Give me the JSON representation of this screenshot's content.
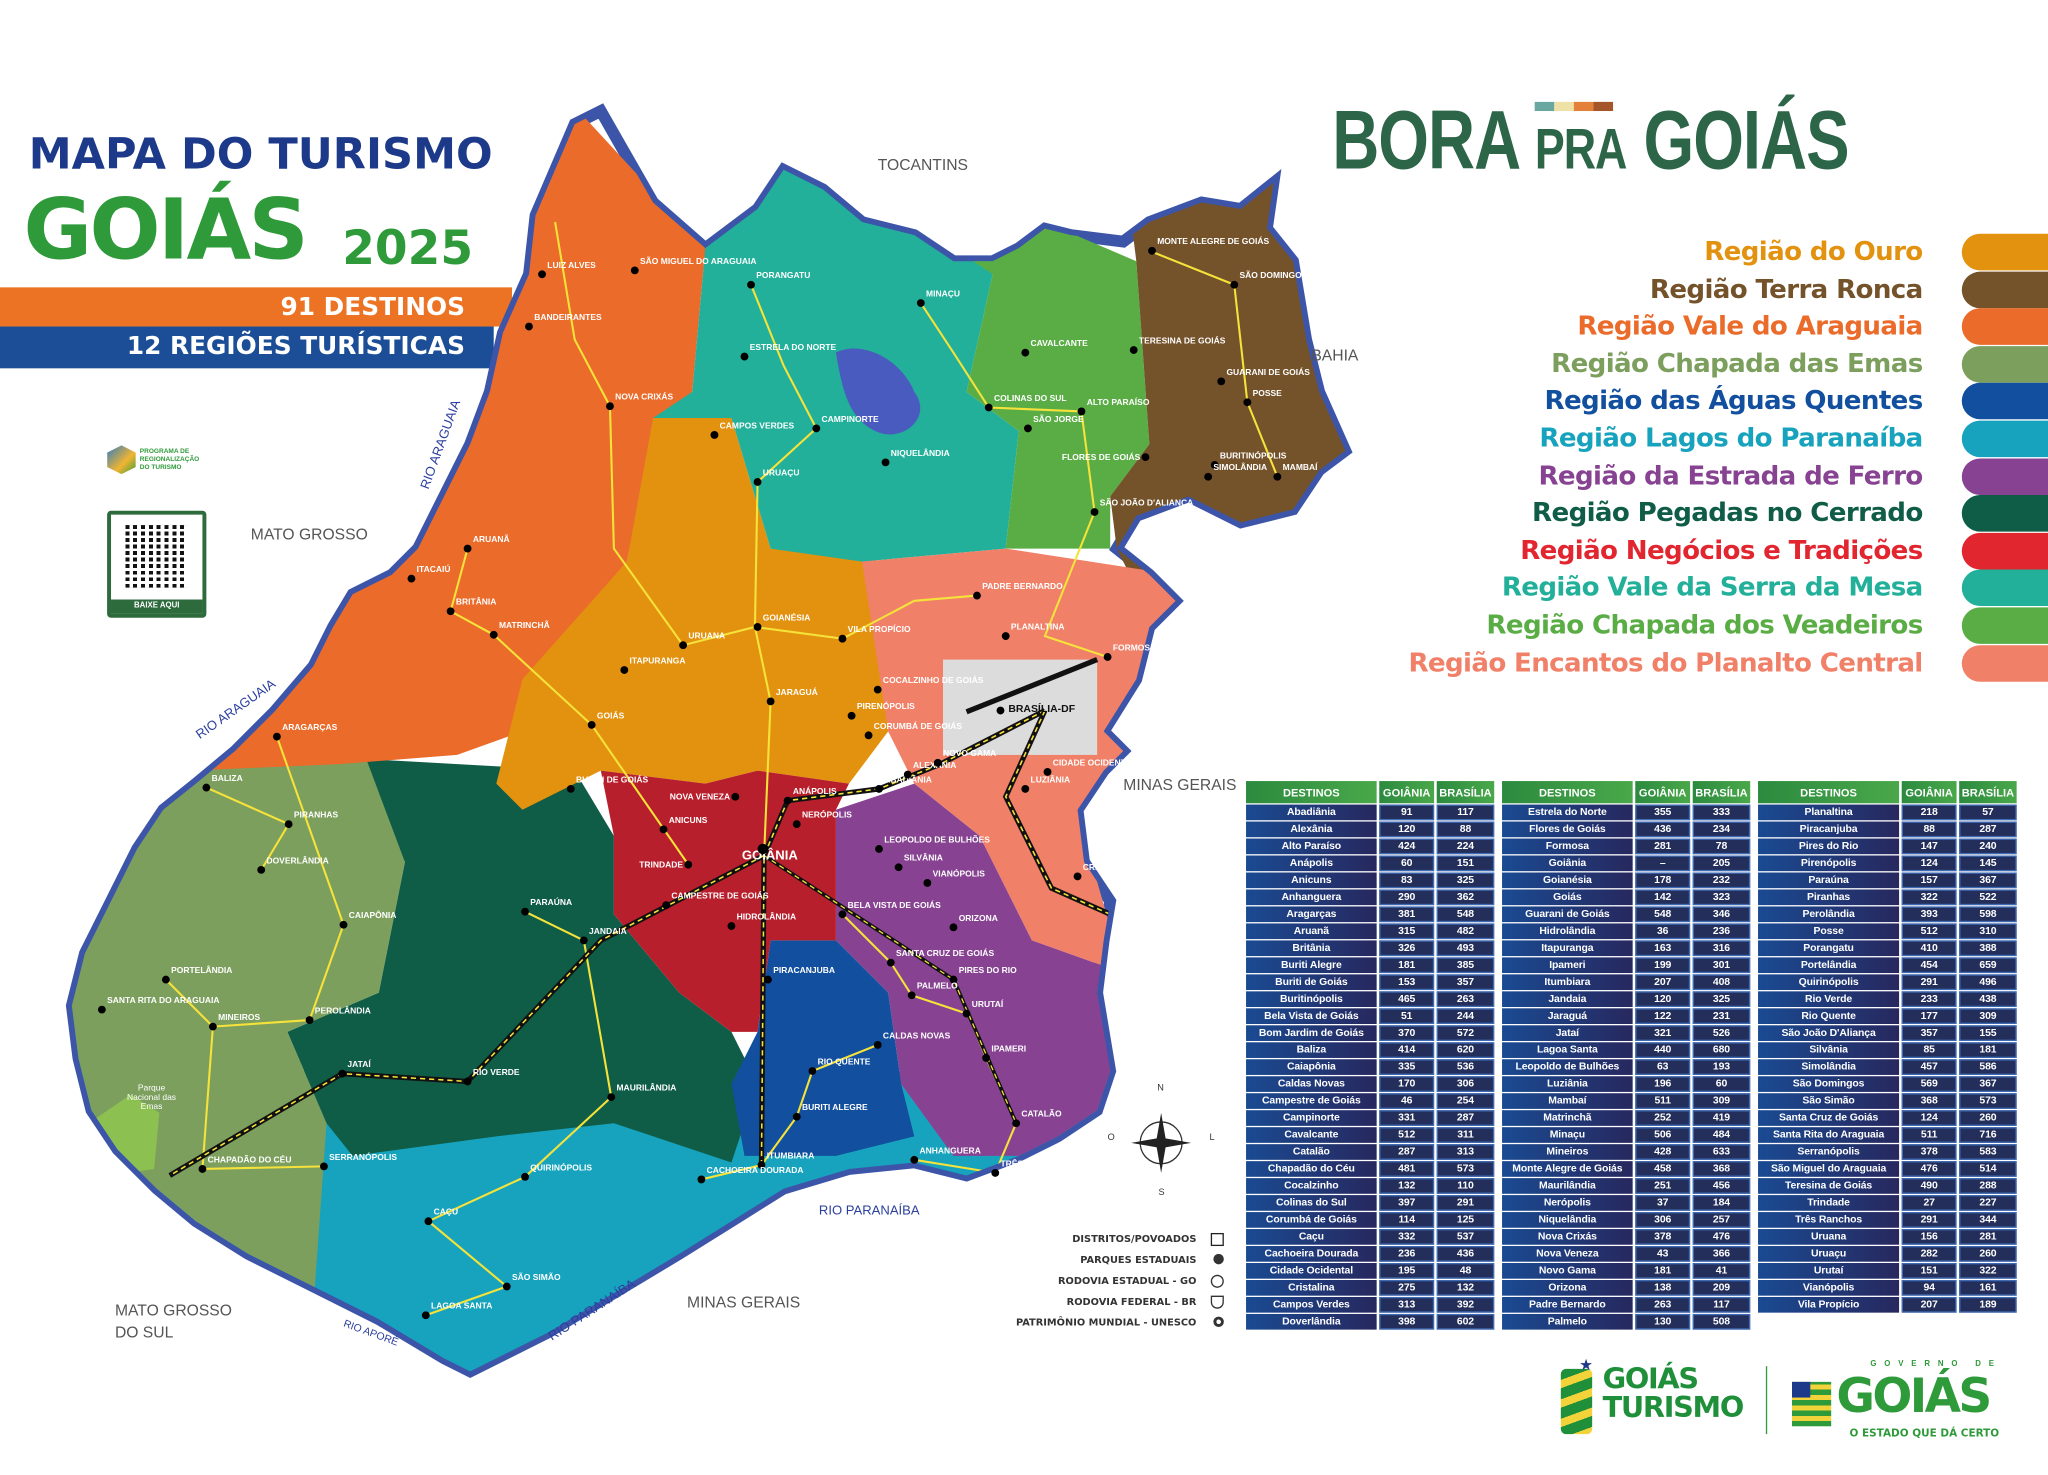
{
  "header": {
    "title_line1": "MAPA DO TURISMO",
    "title_line2": "GOIÁS",
    "year": "2025",
    "destinations_count": "91 DESTINOS",
    "regions_count": "12 REGIÕES TURÍSTICAS",
    "program_logo_text": "PROGRAMA DE REGIONALIZAÇÃO DO TURISMO",
    "qr_label": "BAIXE AQUI"
  },
  "brand": {
    "logo_text_1": "BORA",
    "logo_text_2": "PRA",
    "logo_text_3": "GOIÁS",
    "stripe_colors": [
      "#69a8a0",
      "#efe0a6",
      "#e3813a",
      "#a4562a"
    ]
  },
  "regions": [
    {
      "label": "Região do Ouro",
      "color": "#e3920f"
    },
    {
      "label": "Região Terra Ronca",
      "color": "#74522a"
    },
    {
      "label": "Região Vale do Araguaia",
      "color": "#ea6b2a"
    },
    {
      "label": "Região Chapada das Emas",
      "color": "#7c9f5e"
    },
    {
      "label": "Região das Águas Quentes",
      "color": "#124f9e"
    },
    {
      "label": "Região Lagos do Paranaíba",
      "color": "#17a3bd"
    },
    {
      "label": "Região da Estrada de Ferro",
      "color": "#874392"
    },
    {
      "label": "Região Pegadas no Cerrado",
      "color": "#0f5c47"
    },
    {
      "label": "Região Negócios e Tradições",
      "color": "#e2262f"
    },
    {
      "label": "Região Vale da Serra da Mesa",
      "color": "#22b09a"
    },
    {
      "label": "Região Chapada dos Veadeiros",
      "color": "#5aad45"
    },
    {
      "label": "Região Encantos do Planalto Central",
      "color": "#f08068"
    }
  ],
  "map": {
    "neighbors": [
      "TOCANTINS",
      "BAHIA",
      "MATO GROSSO",
      "MINAS GERAIS",
      "MATO GROSSO DO SUL",
      "MINAS GERAIS"
    ],
    "rivers": [
      "RIO ARAGUAIA",
      "RIO ARAGUAIA",
      "RIO PARANAÍBA",
      "RIO PARANAÍBA",
      "RIO APORÉ"
    ],
    "park_label": "Parque Nacional das Emas",
    "federal_district": "BRASÍLIA-DF",
    "capital": "GOIÂNIA",
    "compass": {
      "n": "N",
      "s": "S",
      "e": "L",
      "w": "O"
    },
    "cities": [
      "Porangatu",
      "Minaçu",
      "Estrela do Norte",
      "Cavalcante",
      "Teresina de Goiás",
      "Monte Alegre de Goiás",
      "São Domingos",
      "Guarani de Goiás",
      "Posse",
      "Campos Verdes",
      "Campinorte",
      "Colinas do Sul",
      "Alto Paraíso",
      "São Jorge",
      "Niquelândia",
      "Uruaçu",
      "Flores de Goiás",
      "Buritinópolis",
      "Simolândia",
      "Mambaí",
      "São João d'Aliança",
      "São Miguel do Araguaia",
      "Luiz Alves",
      "Bandeirantes",
      "Nova Crixás",
      "Aruanã",
      "Itacaiú",
      "Britânia",
      "Matrinchã",
      "Padre Bernardo",
      "Planaltina",
      "Formosa",
      "Goianésia",
      "Vila Propício",
      "Uruana",
      "Itapuranga",
      "Cocalzinho de Goiás",
      "Jaraguá",
      "Pirenópolis",
      "Corumbá de Goiás",
      "Goiás",
      "Aragarças",
      "Buriti de Goiás",
      "Abadiânia",
      "Alexânia",
      "Novo Gama",
      "Cidade Ocidental",
      "Luziânia",
      "Nova Veneza",
      "Anápolis",
      "Nerópolis",
      "Anicuns",
      "Leopoldo de Bulhões",
      "Trindade",
      "Silvânia",
      "Vianópolis",
      "Campestre de Goiás",
      "Bela Vista de Goiás",
      "Hidrolândia",
      "Orizona",
      "Cristalina",
      "Baliza",
      "Piranhas",
      "Doverlândia",
      "Caiapônia",
      "Paraúna",
      "Jandaia",
      "Portelândia",
      "Santa Rita do Araguaia",
      "Perolândia",
      "Mineiros",
      "Piracanjuba",
      "Santa Cruz de Goiás",
      "Pires do Rio",
      "Palmelo",
      "Urutaí",
      "Jataí",
      "Rio Verde",
      "Caldas Novas",
      "Rio Quente",
      "Ipameri",
      "Maurilândia",
      "Buriti Alegre",
      "Catalão",
      "Itumbiara",
      "Anhanguera",
      "Três Ranchos",
      "Chapadão do Céu",
      "Serranópolis",
      "Quirinópolis",
      "Cachoeira Dourada",
      "Caçu",
      "São Simão",
      "Lagoa Santa"
    ]
  },
  "map_legend": [
    {
      "label": "DISTRITOS/POVOADOS",
      "icon": "square-icon"
    },
    {
      "label": "PARQUES ESTADUAIS",
      "icon": "park-icon"
    },
    {
      "label": "RODOVIA ESTADUAL - GO",
      "icon": "circle-icon"
    },
    {
      "label": "RODOVIA FEDERAL - BR",
      "icon": "shield-icon"
    },
    {
      "label": "PATRIMÔNIO MUNDIAL - UNESCO",
      "icon": "unesco-icon"
    }
  ],
  "distance_tables": {
    "headers": [
      "DESTINOS",
      "GOIÂNIA",
      "BRASÍLIA"
    ],
    "tables": [
      [
        [
          "Abadiânia",
          "91",
          "117"
        ],
        [
          "Alexânia",
          "120",
          "88"
        ],
        [
          "Alto Paraíso",
          "424",
          "224"
        ],
        [
          "Anápolis",
          "60",
          "151"
        ],
        [
          "Anicuns",
          "83",
          "325"
        ],
        [
          "Anhanguera",
          "290",
          "362"
        ],
        [
          "Aragarças",
          "381",
          "548"
        ],
        [
          "Aruanã",
          "315",
          "482"
        ],
        [
          "Britânia",
          "326",
          "493"
        ],
        [
          "Buriti Alegre",
          "181",
          "385"
        ],
        [
          "Buriti de Goiás",
          "153",
          "357"
        ],
        [
          "Buritinópolis",
          "465",
          "263"
        ],
        [
          "Bela Vista de Goiás",
          "51",
          "244"
        ],
        [
          "Bom Jardim de Goiás",
          "370",
          "572"
        ],
        [
          "Baliza",
          "414",
          "620"
        ],
        [
          "Caiapônia",
          "335",
          "536"
        ],
        [
          "Caldas Novas",
          "170",
          "306"
        ],
        [
          "Campestre de Goiás",
          "46",
          "254"
        ],
        [
          "Campinorte",
          "331",
          "287"
        ],
        [
          "Cavalcante",
          "512",
          "311"
        ],
        [
          "Catalão",
          "287",
          "313"
        ],
        [
          "Chapadão do Céu",
          "481",
          "573"
        ],
        [
          "Cocalzinho",
          "132",
          "110"
        ],
        [
          "Colinas do Sul",
          "397",
          "291"
        ],
        [
          "Corumbá de Goiás",
          "114",
          "125"
        ],
        [
          "Caçu",
          "332",
          "537"
        ],
        [
          "Cachoeira Dourada",
          "236",
          "436"
        ],
        [
          "Cidade Ocidental",
          "195",
          "48"
        ],
        [
          "Cristalina",
          "275",
          "132"
        ],
        [
          "Campos Verdes",
          "313",
          "392"
        ],
        [
          "Doverlândia",
          "398",
          "602"
        ]
      ],
      [
        [
          "Estrela do Norte",
          "355",
          "333"
        ],
        [
          "Flores de Goiás",
          "436",
          "234"
        ],
        [
          "Formosa",
          "281",
          "78"
        ],
        [
          "Goiânia",
          "–",
          "205"
        ],
        [
          "Goianésia",
          "178",
          "232"
        ],
        [
          "Goiás",
          "142",
          "323"
        ],
        [
          "Guarani de Goiás",
          "548",
          "346"
        ],
        [
          "Hidrolândia",
          "36",
          "236"
        ],
        [
          "Itapuranga",
          "163",
          "316"
        ],
        [
          "Ipameri",
          "199",
          "301"
        ],
        [
          "Itumbiara",
          "207",
          "408"
        ],
        [
          "Jandaia",
          "120",
          "325"
        ],
        [
          "Jaraguá",
          "122",
          "231"
        ],
        [
          "Jataí",
          "321",
          "526"
        ],
        [
          "Lagoa Santa",
          "440",
          "680"
        ],
        [
          "Leopoldo de Bulhões",
          "63",
          "193"
        ],
        [
          "Luziânia",
          "196",
          "60"
        ],
        [
          "Mambaí",
          "511",
          "309"
        ],
        [
          "Matrinchã",
          "252",
          "419"
        ],
        [
          "Minaçu",
          "506",
          "484"
        ],
        [
          "Mineiros",
          "428",
          "633"
        ],
        [
          "Monte Alegre de Goiás",
          "458",
          "368"
        ],
        [
          "Maurilândia",
          "251",
          "456"
        ],
        [
          "Nerópolis",
          "37",
          "184"
        ],
        [
          "Niquelândia",
          "306",
          "257"
        ],
        [
          "Nova Crixás",
          "378",
          "476"
        ],
        [
          "Nova Veneza",
          "43",
          "366"
        ],
        [
          "Novo Gama",
          "181",
          "41"
        ],
        [
          "Orizona",
          "138",
          "209"
        ],
        [
          "Padre Bernardo",
          "263",
          "117"
        ],
        [
          "Palmelo",
          "130",
          "508"
        ]
      ],
      [
        [
          "Planaltina",
          "218",
          "57"
        ],
        [
          "Piracanjuba",
          "88",
          "287"
        ],
        [
          "Pires do Rio",
          "147",
          "240"
        ],
        [
          "Pirenópolis",
          "124",
          "145"
        ],
        [
          "Paraúna",
          "157",
          "367"
        ],
        [
          "Piranhas",
          "322",
          "522"
        ],
        [
          "Perolândia",
          "393",
          "598"
        ],
        [
          "Posse",
          "512",
          "310"
        ],
        [
          "Porangatu",
          "410",
          "388"
        ],
        [
          "Portelândia",
          "454",
          "659"
        ],
        [
          "Quirinópolis",
          "291",
          "496"
        ],
        [
          "Rio Verde",
          "233",
          "438"
        ],
        [
          "Rio Quente",
          "177",
          "309"
        ],
        [
          "São João D'Aliança",
          "357",
          "155"
        ],
        [
          "Silvânia",
          "85",
          "181"
        ],
        [
          "Simolândia",
          "457",
          "586"
        ],
        [
          "São Domingos",
          "569",
          "367"
        ],
        [
          "São Simão",
          "368",
          "573"
        ],
        [
          "Santa Cruz de Goiás",
          "124",
          "260"
        ],
        [
          "Santa Rita do Araguaia",
          "511",
          "716"
        ],
        [
          "Serranópolis",
          "378",
          "583"
        ],
        [
          "São Miguel do Araguaia",
          "476",
          "514"
        ],
        [
          "Teresina de Goiás",
          "490",
          "288"
        ],
        [
          "Trindade",
          "27",
          "227"
        ],
        [
          "Três Ranchos",
          "291",
          "344"
        ],
        [
          "Uruana",
          "156",
          "281"
        ],
        [
          "Uruaçu",
          "282",
          "260"
        ],
        [
          "Urutaí",
          "151",
          "322"
        ],
        [
          "Vianópolis",
          "94",
          "161"
        ],
        [
          "Vila Propício",
          "207",
          "189"
        ]
      ]
    ]
  },
  "footer": {
    "logo1_line1": "GOIÁS",
    "logo1_line2": "TURISMO",
    "logo2_top": "GOVERNO DE",
    "logo2_main": "GOIÁS",
    "logo2_tagline": "O ESTADO QUE DÁ CERTO"
  }
}
